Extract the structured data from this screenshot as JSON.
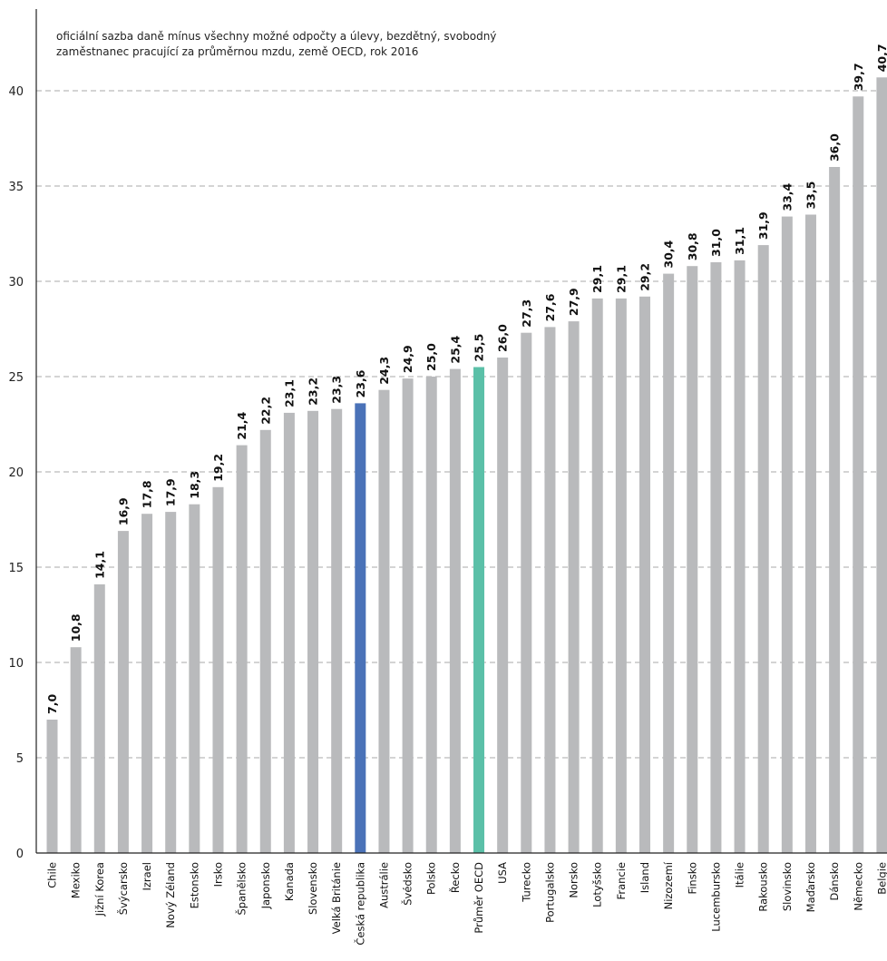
{
  "chart_data": {
    "type": "bar",
    "subtitle_lines": [
      "oficiální sazba daně mínus všechny možné odpočty a úlevy, bezdětný, svobodný",
      "zaměstnanec pracující za průměrnou mzdu, země OECD, rok 2016"
    ],
    "categories": [
      "Chile",
      "Mexiko",
      "Jižní Korea",
      "Švýcarsko",
      "Izrael",
      "Nový Zéland",
      "Estonsko",
      "Irsko",
      "Španělsko",
      "Japonsko",
      "Kanada",
      "Slovensko",
      "Velká Británie",
      "Česká republika",
      "Austrálie",
      "Švédsko",
      "Polsko",
      "Řecko",
      "Průměr OECD",
      "USA",
      "Turecko",
      "Portugalsko",
      "Norsko",
      "Lotyšsko",
      "Francie",
      "Island",
      "Nizozemí",
      "Finsko",
      "Lucembursko",
      "Itálie",
      "Rakousko",
      "Slovinsko",
      "Maďarsko",
      "Dánsko",
      "Německo",
      "Belgie"
    ],
    "values": [
      7.0,
      10.8,
      14.1,
      16.9,
      17.8,
      17.9,
      18.3,
      19.2,
      21.4,
      22.2,
      23.1,
      23.2,
      23.3,
      23.6,
      24.3,
      24.9,
      25.0,
      25.4,
      25.5,
      26.0,
      27.3,
      27.6,
      27.9,
      29.1,
      29.1,
      29.2,
      30.4,
      30.8,
      31.0,
      31.1,
      31.9,
      33.4,
      33.5,
      36.0,
      39.7,
      40.7
    ],
    "value_labels": [
      "7,0",
      "10,8",
      "14,1",
      "16,9",
      "17,8",
      "17,9",
      "18,3",
      "19,2",
      "21,4",
      "22,2",
      "23,1",
      "23,2",
      "23,3",
      "23,6",
      "24,3",
      "24,9",
      "25,0",
      "25,4",
      "25,5",
      "26,0",
      "27,3",
      "27,6",
      "27,9",
      "29,1",
      "29,1",
      "29,2",
      "30,4",
      "30,8",
      "31,0",
      "31,1",
      "31,9",
      "33,4",
      "33,5",
      "36,0",
      "39,7",
      "40,7"
    ],
    "y_ticks": [
      0,
      5,
      10,
      15,
      20,
      25,
      30,
      35,
      40
    ],
    "ylim": [
      0,
      43
    ],
    "grid": true,
    "colors": {
      "default": "#b9babc",
      "highlight": "#4a72b8",
      "oecd": "#5bc0a8"
    },
    "highlight_category": "Česká republika",
    "oecd_category": "Průměr OECD"
  }
}
